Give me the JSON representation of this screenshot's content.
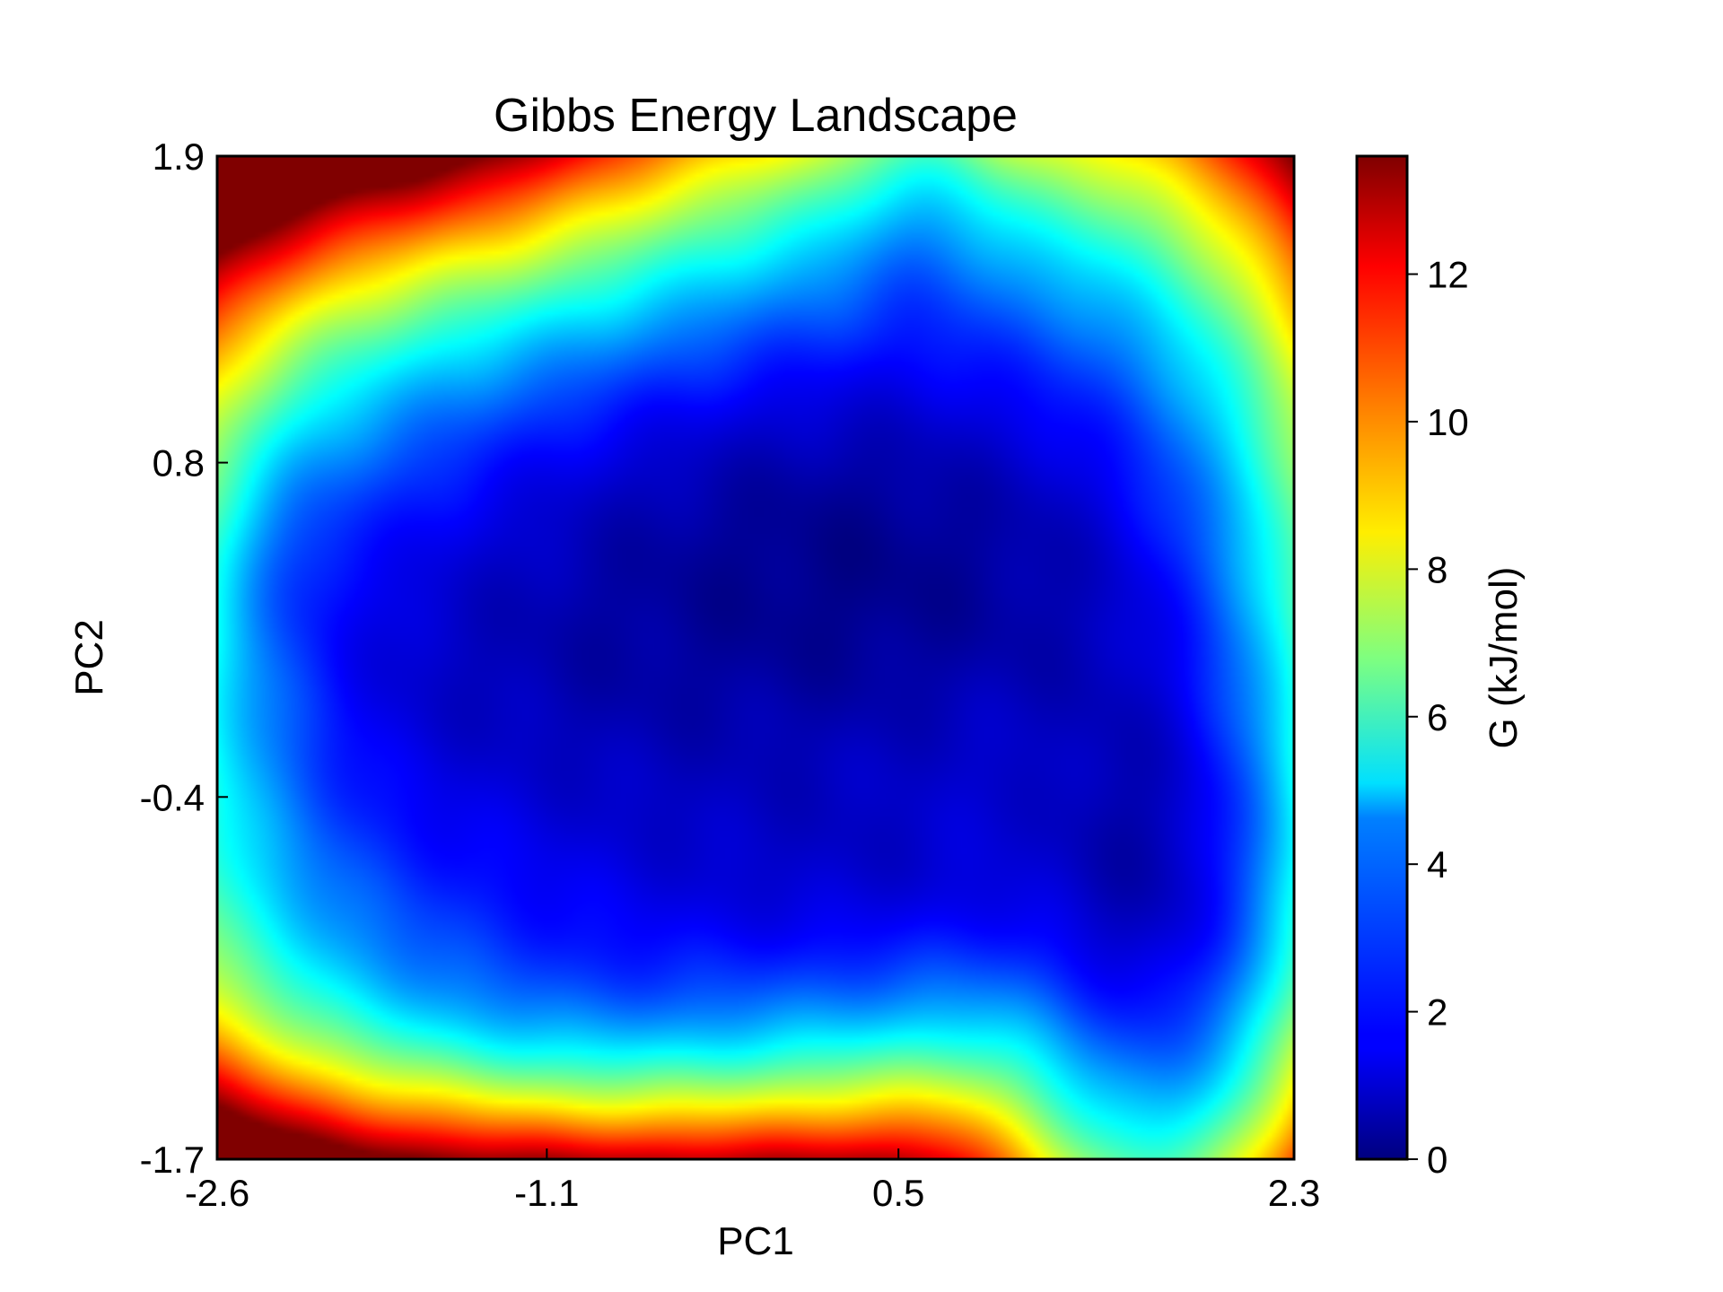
{
  "chart_data": {
    "type": "heatmap",
    "title": "Gibbs Energy Landscape",
    "xlabel": "PC1",
    "ylabel": "PC2",
    "colorbar_label": "G (kJ/mol)",
    "colormap": "jet",
    "xlim": [
      -2.6,
      2.3
    ],
    "ylim": [
      -1.7,
      1.9
    ],
    "clim": [
      0,
      13.6
    ],
    "x_ticks": [
      -2.6,
      -1.1,
      0.5,
      2.3
    ],
    "x_tick_labels": [
      "-2.6",
      "-1.1",
      "0.5",
      "2.3"
    ],
    "y_ticks": [
      -1.7,
      -0.4,
      0.8,
      1.9
    ],
    "y_tick_labels": [
      "-1.7",
      "-0.4",
      "0.8",
      "1.9"
    ],
    "colorbar_ticks": [
      0,
      2,
      4,
      6,
      8,
      10,
      12
    ],
    "colorbar_tick_labels": [
      "0",
      "2",
      "4",
      "6",
      "8",
      "10",
      "12"
    ],
    "background_value": 13.6,
    "minima": [
      {
        "pc1": 0.6,
        "pc2": 0.18,
        "g": 0.0
      },
      {
        "pc1": -1.15,
        "pc2": 0.05,
        "g": 1.0
      },
      {
        "pc1": 1.7,
        "pc2": -0.45,
        "g": 2.0
      }
    ]
  }
}
